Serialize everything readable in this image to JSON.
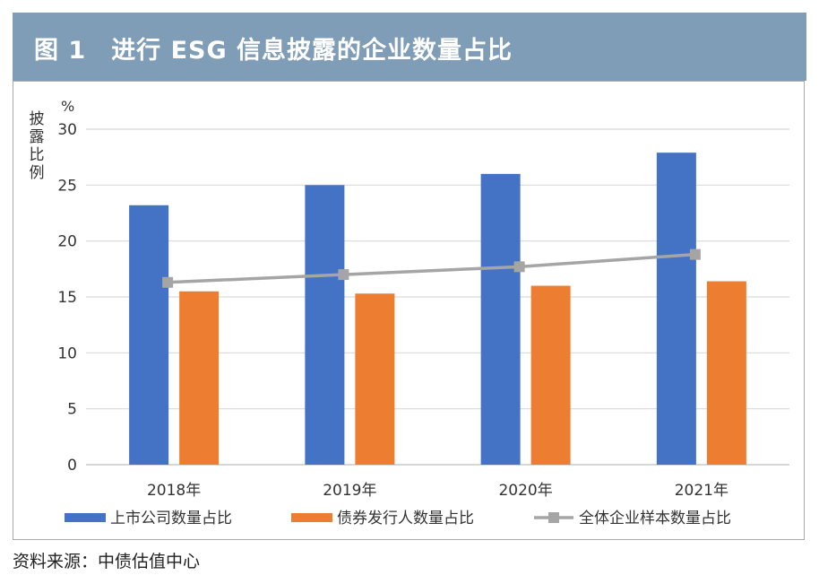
{
  "figure": {
    "label": "图 1",
    "title": "进行 ESG 信息披露的企业数量占比",
    "source_label": "资料来源：",
    "source": "中债估值中心"
  },
  "chart_data": {
    "type": "bar",
    "categories": [
      "2018年",
      "2019年",
      "2020年",
      "2021年"
    ],
    "series": [
      {
        "name": "上市公司数量占比",
        "type": "bar",
        "color": "#4472c4",
        "values": [
          23.2,
          25.0,
          26.0,
          27.9
        ]
      },
      {
        "name": "债券发行人数量占比",
        "type": "bar",
        "color": "#ed7d31",
        "values": [
          15.5,
          15.3,
          16.0,
          16.4
        ]
      },
      {
        "name": "全体企业样本数量占比",
        "type": "line",
        "color": "#a5a5a5",
        "values": [
          16.3,
          17.0,
          17.7,
          18.8
        ]
      }
    ],
    "yunit": "%",
    "ylabel": "披露比例",
    "ylim": [
      0,
      30
    ],
    "yticks": [
      0,
      5,
      10,
      15,
      20,
      25,
      30
    ],
    "grid": true,
    "legend": "bottom"
  }
}
